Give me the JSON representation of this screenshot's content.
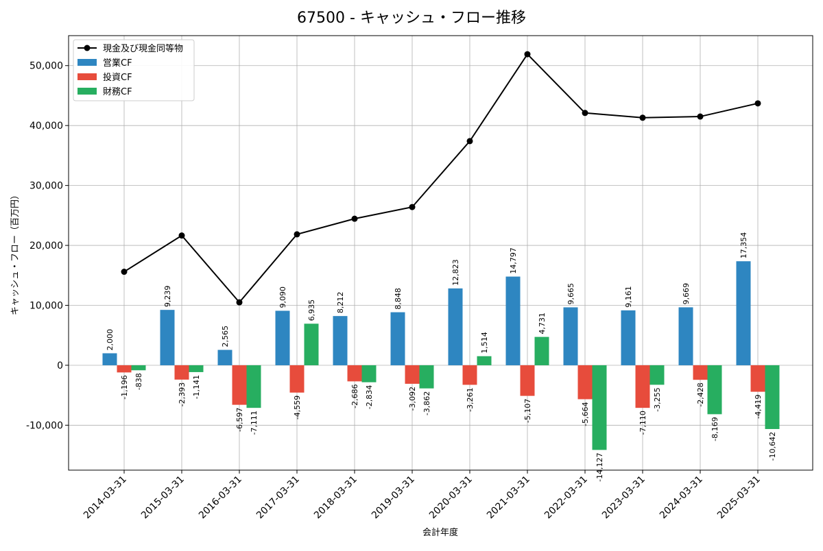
{
  "chart_data": {
    "type": "bar",
    "title": "67500 - キャッシュ・フロー推移",
    "xlabel": "会計年度",
    "ylabel": "キャッシュ・フロー（百万円）",
    "ylim": [
      -17500,
      55000
    ],
    "yticks": [
      -10000,
      0,
      10000,
      20000,
      30000,
      40000,
      50000
    ],
    "ytick_labels": [
      "-10,000",
      "0",
      "10,000",
      "20,000",
      "30,000",
      "40,000",
      "50,000"
    ],
    "grid": true,
    "legend_position": "top-left",
    "categories": [
      "2014-03-31",
      "2015-03-31",
      "2016-03-31",
      "2017-03-31",
      "2018-03-31",
      "2019-03-31",
      "2020-03-31",
      "2021-03-31",
      "2022-03-31",
      "2023-03-31",
      "2024-03-31",
      "2025-03-31"
    ],
    "series": [
      {
        "name": "営業CF",
        "type": "bar",
        "color": "#2e86c1",
        "values": [
          2000,
          9239,
          2565,
          9090,
          8212,
          8848,
          12823,
          14797,
          9665,
          9161,
          9669,
          17354
        ],
        "labels": [
          "2,000",
          "9,239",
          "2,565",
          "9,090",
          "8,212",
          "8,848",
          "12,823",
          "14,797",
          "9,665",
          "9,161",
          "9,669",
          "17,354"
        ]
      },
      {
        "name": "投資CF",
        "type": "bar",
        "color": "#e74c3c",
        "values": [
          -1196,
          -2393,
          -6597,
          -4559,
          -2686,
          -3092,
          -3261,
          -5107,
          -5664,
          -7110,
          -2428,
          -4419
        ],
        "labels": [
          "-1,196",
          "-2,393",
          "-6,597",
          "-4,559",
          "-2,686",
          "-3,092",
          "-3,261",
          "-5,107",
          "-5,664",
          "-7,110",
          "-2,428",
          "-4,419"
        ]
      },
      {
        "name": "財務CF",
        "type": "bar",
        "color": "#27ae60",
        "values": [
          -838,
          -1141,
          -7111,
          6935,
          -2834,
          -3862,
          1514,
          4731,
          -14127,
          -3255,
          -8169,
          -10642
        ],
        "labels": [
          "-838",
          "-1,141",
          "-7,111",
          "6,935",
          "-2,834",
          "-3,862",
          "1,514",
          "4,731",
          "-14,127",
          "-3,255",
          "-8,169",
          "-10,642"
        ]
      },
      {
        "name": "現金及び現金同等物",
        "type": "line",
        "color": "#000000",
        "values": [
          15600,
          21650,
          10500,
          21850,
          24450,
          26400,
          37400,
          51900,
          42100,
          41300,
          41500,
          43700
        ]
      }
    ]
  }
}
